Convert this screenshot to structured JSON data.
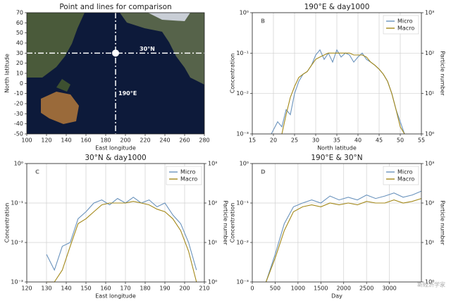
{
  "chart_data": [
    {
      "type": "map",
      "title": "Point and lines for comparison",
      "xlabel": "East longitude",
      "ylabel": "North latitude",
      "xlim": [
        100,
        280
      ],
      "ylim": [
        -50,
        70
      ],
      "xticks": [
        100,
        120,
        140,
        160,
        180,
        200,
        220,
        240,
        260,
        280
      ],
      "yticks": [
        -50,
        -40,
        -30,
        -20,
        -10,
        0,
        10,
        20,
        30,
        40,
        50,
        60,
        70
      ],
      "marker": {
        "lon": 190,
        "lat": 30,
        "lon_label": "190°E",
        "lat_label": "30°N"
      }
    },
    {
      "type": "line",
      "title": "190°E & day1000",
      "panel_label": "B",
      "xlabel": "North latitude",
      "ylabel": "Concentration",
      "y2label": "Particle number",
      "log_y": true,
      "grid": true,
      "legend": "upper right",
      "xlim": [
        15,
        55
      ],
      "xticks": [
        15,
        20,
        25,
        30,
        35,
        40,
        45,
        50,
        55
      ],
      "ylim": [
        0.001,
        1
      ],
      "yticks": [
        {
          "value": 0.001,
          "label": "10⁻³"
        },
        {
          "value": 0.01,
          "label": "10⁻²"
        },
        {
          "value": 0.1,
          "label": "10⁻¹"
        },
        {
          "value": 1,
          "label": "10⁰"
        }
      ],
      "y2lim": [
        1,
        1000
      ],
      "y2ticks": [
        {
          "value": 1,
          "label": "10⁰"
        },
        {
          "value": 10,
          "label": "10¹"
        },
        {
          "value": 100,
          "label": "10²"
        },
        {
          "value": 1000,
          "label": "10³"
        }
      ],
      "x": [
        19.5,
        21,
        22,
        23,
        24,
        25,
        26,
        27,
        28,
        29,
        30,
        31,
        32,
        33,
        34,
        35,
        36,
        37,
        38,
        39,
        40,
        41,
        42,
        43,
        44,
        45,
        46,
        47,
        48,
        49,
        50,
        51
      ],
      "series": [
        {
          "name": "Micro",
          "color": "#6a93bd",
          "values": [
            0.001,
            0.002,
            0.0015,
            0.004,
            0.003,
            0.01,
            0.02,
            0.03,
            0.035,
            0.05,
            0.09,
            0.12,
            0.07,
            0.1,
            0.06,
            0.12,
            0.08,
            0.1,
            0.09,
            0.06,
            0.08,
            0.1,
            0.07,
            0.06,
            0.05,
            0.04,
            0.03,
            0.02,
            0.01,
            0.004,
            0.002,
            0.001
          ]
        },
        {
          "name": "Macro",
          "color": "#a4891a",
          "values": [
            null,
            null,
            0.001,
            0.003,
            0.008,
            0.015,
            0.025,
            0.03,
            0.035,
            0.05,
            0.07,
            0.08,
            0.09,
            0.1,
            0.1,
            0.1,
            0.1,
            0.1,
            0.1,
            0.09,
            0.09,
            0.09,
            0.08,
            0.06,
            0.05,
            0.04,
            0.03,
            0.02,
            0.01,
            0.004,
            0.0015,
            0.001
          ]
        }
      ]
    },
    {
      "type": "line",
      "title": "30°N & day1000",
      "panel_label": "C",
      "xlabel": "East longitude",
      "ylabel": "Concentration",
      "y2label": "Particle number",
      "log_y": true,
      "grid": true,
      "legend": "upper right",
      "xlim": [
        120,
        210
      ],
      "xticks": [
        120,
        130,
        140,
        150,
        160,
        170,
        180,
        190,
        200,
        210
      ],
      "ylim": [
        0.001,
        1
      ],
      "yticks": [
        {
          "value": 0.001,
          "label": "10⁻³"
        },
        {
          "value": 0.01,
          "label": "10⁻²"
        },
        {
          "value": 0.1,
          "label": "10⁻¹"
        },
        {
          "value": 1,
          "label": "10⁰"
        }
      ],
      "y2lim": [
        1,
        1000
      ],
      "y2ticks": [
        {
          "value": 1,
          "label": "10⁰"
        },
        {
          "value": 10,
          "label": "10¹"
        },
        {
          "value": 100,
          "label": "10²"
        },
        {
          "value": 1000,
          "label": "10³"
        }
      ],
      "x": [
        130,
        134,
        138,
        142,
        146,
        150,
        154,
        158,
        162,
        166,
        170,
        174,
        178,
        182,
        186,
        190,
        194,
        198,
        202,
        206
      ],
      "series": [
        {
          "name": "Micro",
          "color": "#6a93bd",
          "values": [
            0.005,
            0.002,
            0.008,
            0.01,
            0.04,
            0.06,
            0.1,
            0.12,
            0.09,
            0.13,
            0.1,
            0.14,
            0.1,
            0.12,
            0.08,
            0.1,
            0.05,
            0.03,
            0.01,
            0.002
          ]
        },
        {
          "name": "Macro",
          "color": "#a4891a",
          "values": [
            0.001,
            0.001,
            0.002,
            0.008,
            0.03,
            0.04,
            0.06,
            0.09,
            0.1,
            0.1,
            0.1,
            0.11,
            0.1,
            0.09,
            0.07,
            0.06,
            0.04,
            0.02,
            0.006,
            0.001
          ]
        }
      ]
    },
    {
      "type": "line",
      "title": "190°E & 30°N",
      "panel_label": "D",
      "xlabel": "Day",
      "ylabel": "Concentration",
      "y2label": "Particle number",
      "log_y": true,
      "grid": true,
      "legend": "upper right",
      "xlim": [
        0,
        3700
      ],
      "xticks": [
        0,
        500,
        1000,
        1500,
        2000,
        2500,
        3000
      ],
      "ylim": [
        0.001,
        1
      ],
      "yticks": [
        {
          "value": 0.001,
          "label": "10⁻³"
        },
        {
          "value": 0.01,
          "label": "10⁻²"
        },
        {
          "value": 0.1,
          "label": "10⁻¹"
        },
        {
          "value": 1,
          "label": "10⁰"
        }
      ],
      "y2lim": [
        1,
        1000
      ],
      "y2ticks": [
        {
          "value": 1,
          "label": "10⁰"
        },
        {
          "value": 10,
          "label": "10¹"
        },
        {
          "value": 100,
          "label": "10²"
        },
        {
          "value": 1000,
          "label": "10³"
        }
      ],
      "x": [
        300,
        500,
        700,
        900,
        1100,
        1300,
        1500,
        1700,
        1900,
        2100,
        2300,
        2500,
        2700,
        2900,
        3100,
        3300,
        3500,
        3700
      ],
      "series": [
        {
          "name": "Micro",
          "color": "#6a93bd",
          "values": [
            0.001,
            0.005,
            0.03,
            0.08,
            0.1,
            0.12,
            0.1,
            0.15,
            0.12,
            0.14,
            0.12,
            0.16,
            0.13,
            0.15,
            0.18,
            0.14,
            0.16,
            0.2
          ]
        },
        {
          "name": "Macro",
          "color": "#a4891a",
          "values": [
            0.001,
            0.004,
            0.02,
            0.06,
            0.08,
            0.09,
            0.08,
            0.1,
            0.09,
            0.1,
            0.09,
            0.11,
            0.1,
            0.1,
            0.12,
            0.1,
            0.11,
            0.13
          ]
        }
      ]
    }
  ],
  "watermark": "新经济学家"
}
